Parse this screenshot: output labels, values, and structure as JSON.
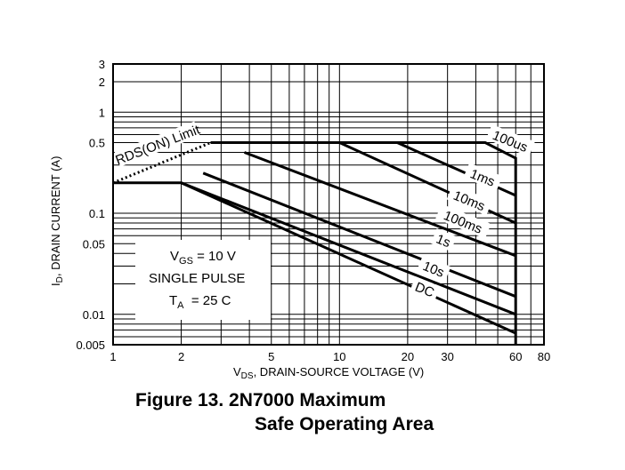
{
  "chart_data": {
    "type": "line",
    "scale": {
      "x": "log",
      "y": "log"
    },
    "xlim": [
      1,
      80
    ],
    "ylim": [
      0.005,
      3
    ],
    "x_ticks": [
      {
        "value": 1,
        "label": "1"
      },
      {
        "value": 2,
        "label": "2"
      },
      {
        "value": 5,
        "label": "5"
      },
      {
        "value": 10,
        "label": "10"
      },
      {
        "value": 20,
        "label": "20"
      },
      {
        "value": 30,
        "label": "30"
      },
      {
        "value": 60,
        "label": "60"
      },
      {
        "value": 80,
        "label": "80"
      }
    ],
    "y_ticks": [
      {
        "value": 3,
        "label": "3"
      },
      {
        "value": 2,
        "label": "2"
      },
      {
        "value": 1,
        "label": "1"
      },
      {
        "value": 0.5,
        "label": "0.5"
      },
      {
        "value": 0.1,
        "label": "0.1"
      },
      {
        "value": 0.05,
        "label": "0.05"
      },
      {
        "value": 0.01,
        "label": "0.01"
      },
      {
        "value": 0.005,
        "label": "0.005"
      }
    ],
    "xlabel": {
      "main": "V",
      "sub": "DS",
      "rest": ", DRAIN-SOURCE VOLTAGE (V)"
    },
    "ylabel": {
      "main": "I",
      "sub": "D",
      "rest": ", DRAIN CURRENT (A)"
    },
    "rds_limit": {
      "label": "RDS(ON) Limit",
      "points": [
        [
          1,
          0.2
        ],
        [
          2.7,
          0.5
        ]
      ]
    },
    "series": [
      {
        "name": "100us",
        "points": [
          [
            2.7,
            0.5
          ],
          [
            44,
            0.5
          ],
          [
            60,
            0.35
          ],
          [
            60,
            0.005
          ]
        ]
      },
      {
        "name": "1ms",
        "points": [
          [
            2.7,
            0.5
          ],
          [
            18,
            0.5
          ],
          [
            60,
            0.15
          ]
        ]
      },
      {
        "name": "10ms",
        "points": [
          [
            2.7,
            0.5
          ],
          [
            10,
            0.5
          ],
          [
            60,
            0.08
          ]
        ]
      },
      {
        "name": "100ms",
        "points": [
          [
            3.8,
            0.4
          ],
          [
            60,
            0.038
          ]
        ]
      },
      {
        "name": "1s",
        "points": [
          [
            2.5,
            0.25
          ],
          [
            60,
            0.015
          ]
        ]
      },
      {
        "name": "10s",
        "points": [
          [
            2,
            0.2
          ],
          [
            60,
            0.01
          ]
        ]
      },
      {
        "name": "DC",
        "points": [
          [
            1,
            0.2
          ],
          [
            2,
            0.2
          ],
          [
            60,
            0.0065
          ]
        ]
      }
    ],
    "conditions": {
      "vgs": {
        "main": "V",
        "sub": "GS",
        "rest": " = 10 V"
      },
      "pulse": "SINGLE PULSE",
      "ta": {
        "main": "T",
        "sub": "A",
        "rest": "  = 25 C"
      }
    }
  },
  "caption": {
    "line1": "Figure 13. 2N7000 Maximum",
    "line2": "Safe Operating Area"
  }
}
